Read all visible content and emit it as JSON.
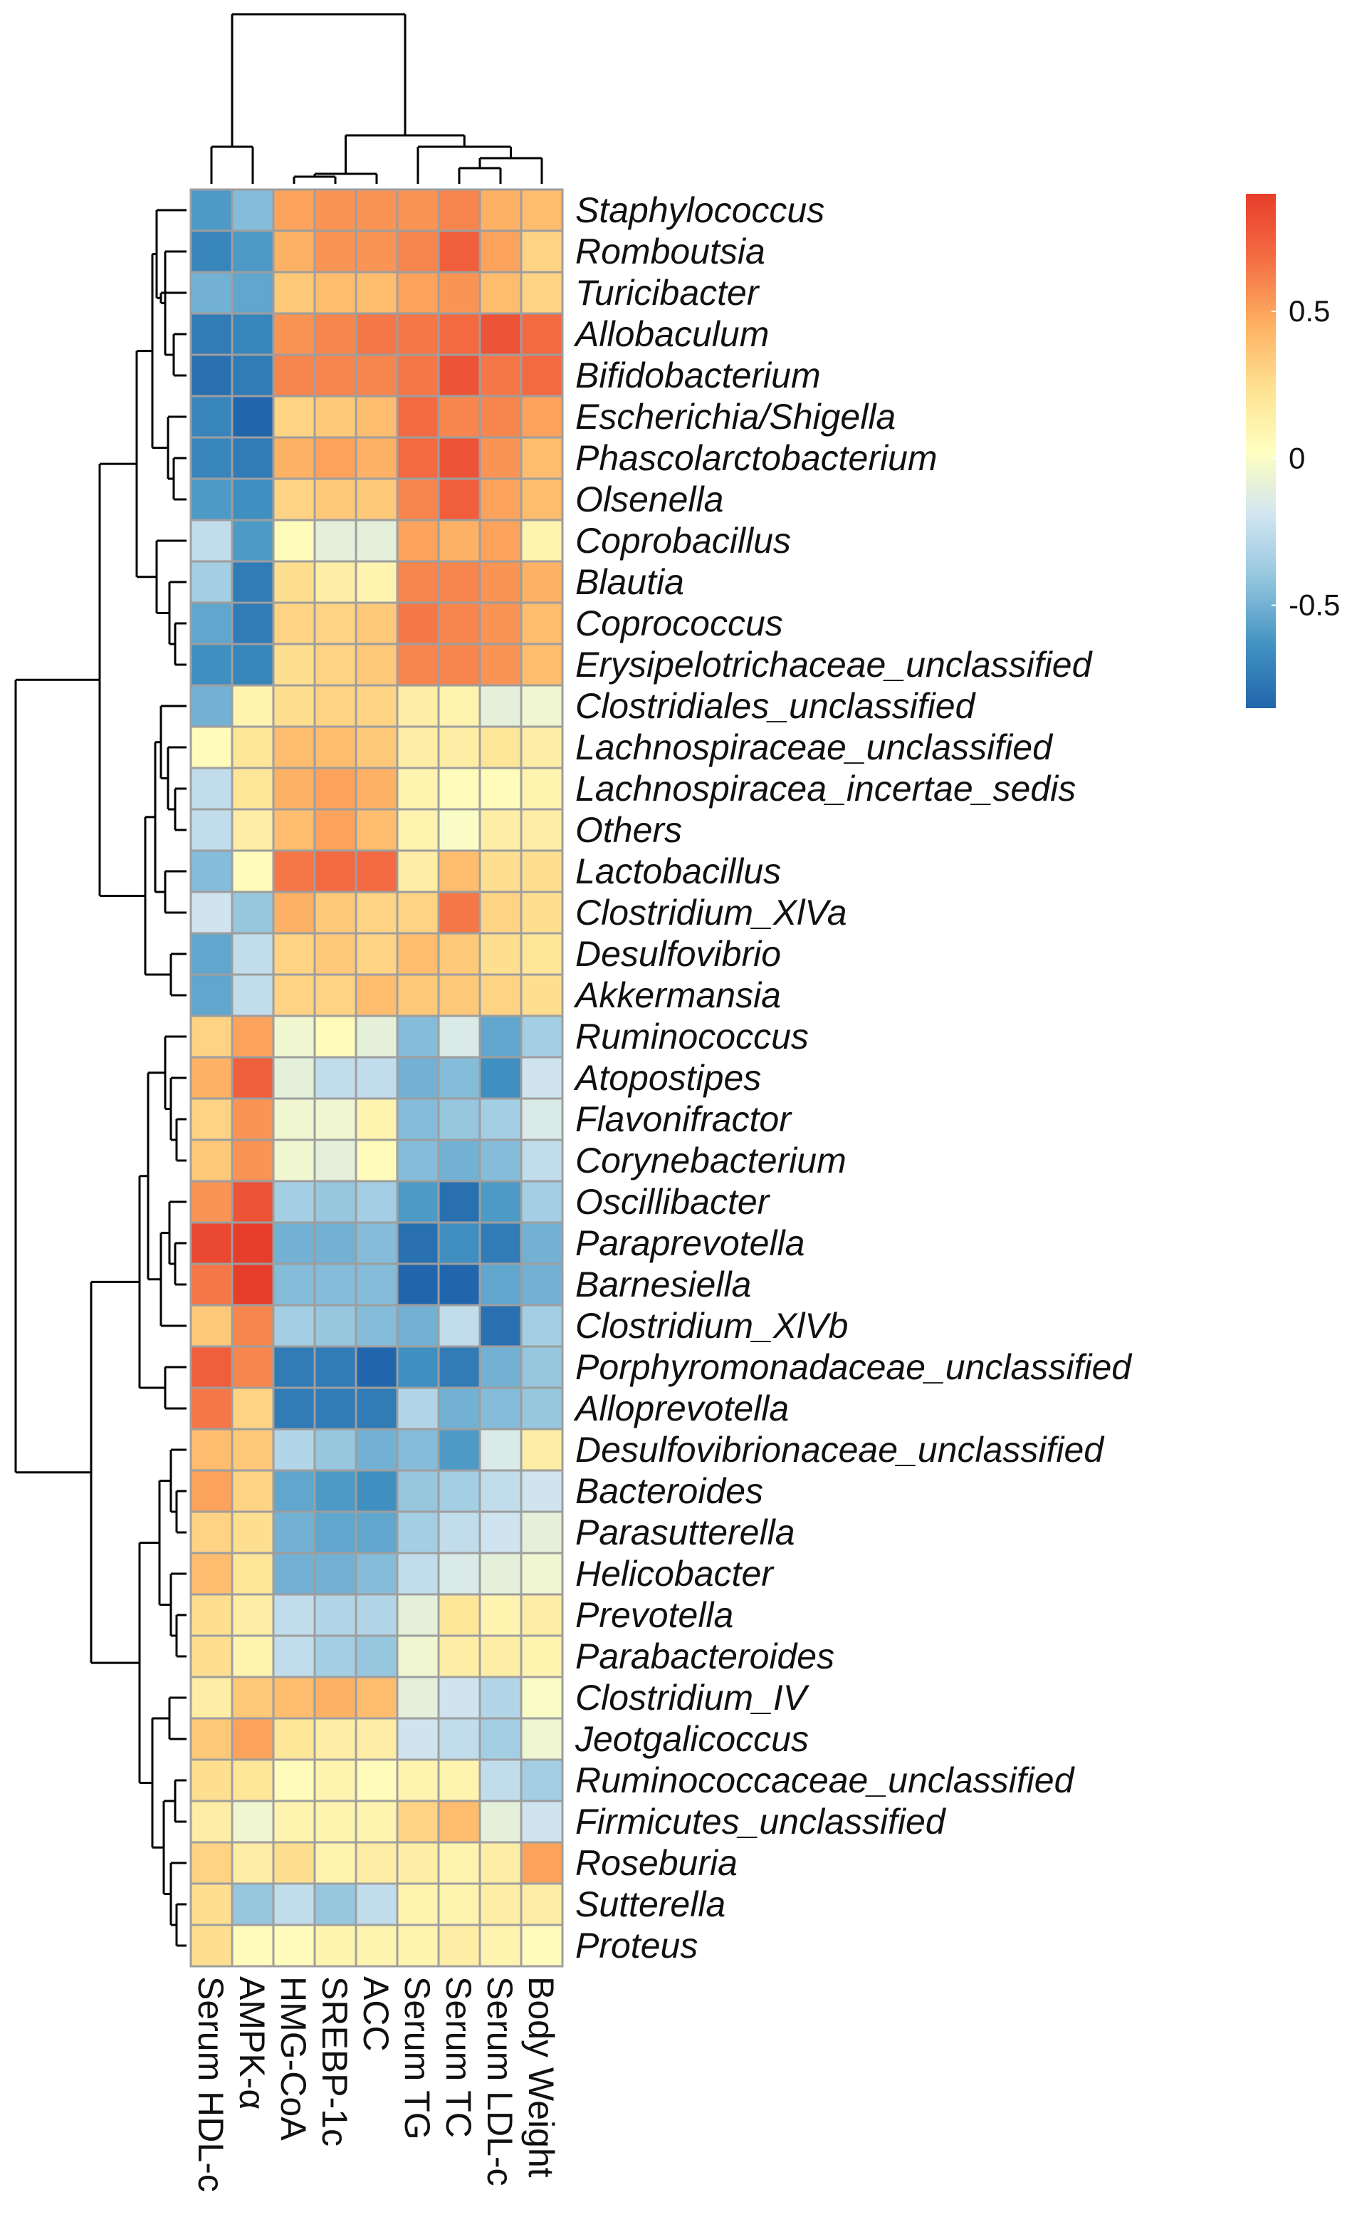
{
  "chart_data": {
    "type": "heatmap",
    "title": "",
    "xlabel": "",
    "ylabel": "",
    "columns": [
      "Serum HDL-c",
      "AMPK-α",
      "HMG-CoA",
      "SREBP-1c",
      "ACC",
      "Serum TG",
      "Serum TC",
      "Serum LDL-c",
      "Body Weight"
    ],
    "rows": [
      "Staphylococcus",
      "Romboutsia",
      "Turicibacter",
      "Allobaculum",
      "Bifidobacterium",
      "Escherichia/Shigella",
      "Phascolarctobacterium",
      "Olsenella",
      "Coprobacillus",
      "Blautia",
      "Coprococcus",
      "Erysipelotrichaceae_unclassified",
      "Clostridiales_unclassified",
      "Lachnospiraceae_unclassified",
      "Lachnospiracea_incertae_sedis",
      "Others",
      "Lactobacillus",
      "Clostridium_XlVa",
      "Desulfovibrio",
      "Akkermansia",
      "Ruminococcus",
      "Atopostipes",
      "Flavonifractor",
      "Corynebacterium",
      "Oscillibacter",
      "Paraprevotella",
      "Barnesiella",
      "Clostridium_XlVb",
      "Porphyromonadaceae_unclassified",
      "Alloprevotella",
      "Desulfovibrionaceae_unclassified",
      "Bacteroides",
      "Parasutterella",
      "Helicobacter",
      "Prevotella",
      "Parabacteroides",
      "Clostridium_IV",
      "Jeotgalicoccus",
      "Ruminococcaceae_unclassified",
      "Firmicutes_unclassified",
      "Roseburia",
      "Sutterella",
      "Proteus"
    ],
    "values": [
      [
        -0.6,
        -0.45,
        0.5,
        0.55,
        0.55,
        0.55,
        0.6,
        0.45,
        0.4
      ],
      [
        -0.7,
        -0.6,
        0.45,
        0.55,
        0.55,
        0.6,
        0.75,
        0.5,
        0.3
      ],
      [
        -0.5,
        -0.55,
        0.35,
        0.4,
        0.4,
        0.5,
        0.55,
        0.4,
        0.3
      ],
      [
        -0.75,
        -0.7,
        0.55,
        0.6,
        0.65,
        0.65,
        0.7,
        0.8,
        0.7
      ],
      [
        -0.8,
        -0.75,
        0.6,
        0.6,
        0.6,
        0.65,
        0.8,
        0.65,
        0.7
      ],
      [
        -0.7,
        -0.9,
        0.3,
        0.35,
        0.4,
        0.7,
        0.6,
        0.6,
        0.5
      ],
      [
        -0.7,
        -0.75,
        0.45,
        0.5,
        0.45,
        0.7,
        0.8,
        0.55,
        0.4
      ],
      [
        -0.6,
        -0.65,
        0.3,
        0.35,
        0.35,
        0.6,
        0.75,
        0.5,
        0.4
      ],
      [
        -0.25,
        -0.6,
        0.05,
        -0.1,
        -0.1,
        0.5,
        0.45,
        0.5,
        0.1
      ],
      [
        -0.35,
        -0.75,
        0.25,
        0.15,
        0.1,
        0.6,
        0.6,
        0.55,
        0.45
      ],
      [
        -0.55,
        -0.75,
        0.3,
        0.3,
        0.35,
        0.65,
        0.6,
        0.55,
        0.4
      ],
      [
        -0.65,
        -0.7,
        0.25,
        0.3,
        0.35,
        0.6,
        0.6,
        0.55,
        0.4
      ],
      [
        -0.5,
        0.1,
        0.25,
        0.3,
        0.3,
        0.15,
        0.1,
        -0.1,
        -0.05
      ],
      [
        0.05,
        0.2,
        0.4,
        0.4,
        0.35,
        0.15,
        0.15,
        0.2,
        0.15
      ],
      [
        -0.25,
        0.2,
        0.45,
        0.5,
        0.45,
        0.1,
        0.05,
        0.05,
        0.1
      ],
      [
        -0.25,
        0.15,
        0.4,
        0.5,
        0.4,
        0.1,
        0.0,
        0.15,
        0.15
      ],
      [
        -0.45,
        0.05,
        0.65,
        0.7,
        0.7,
        0.15,
        0.4,
        0.25,
        0.25
      ],
      [
        -0.2,
        -0.4,
        0.45,
        0.35,
        0.3,
        0.3,
        0.65,
        0.3,
        0.25
      ],
      [
        -0.55,
        -0.25,
        0.3,
        0.35,
        0.3,
        0.4,
        0.35,
        0.25,
        0.2
      ],
      [
        -0.55,
        -0.25,
        0.3,
        0.3,
        0.4,
        0.35,
        0.35,
        0.3,
        0.25
      ],
      [
        0.3,
        0.5,
        -0.05,
        0.05,
        -0.1,
        -0.45,
        -0.15,
        -0.55,
        -0.35
      ],
      [
        0.45,
        0.75,
        -0.1,
        -0.25,
        -0.25,
        -0.5,
        -0.45,
        -0.65,
        -0.2
      ],
      [
        0.3,
        0.55,
        -0.05,
        -0.05,
        0.1,
        -0.45,
        -0.4,
        -0.35,
        -0.15
      ],
      [
        0.35,
        0.55,
        -0.05,
        -0.1,
        0.05,
        -0.45,
        -0.5,
        -0.45,
        -0.25
      ],
      [
        0.55,
        0.8,
        -0.35,
        -0.4,
        -0.35,
        -0.6,
        -0.8,
        -0.6,
        -0.35
      ],
      [
        0.85,
        0.9,
        -0.5,
        -0.5,
        -0.45,
        -0.8,
        -0.65,
        -0.75,
        -0.5
      ],
      [
        0.65,
        0.9,
        -0.45,
        -0.45,
        -0.45,
        -0.9,
        -0.9,
        -0.55,
        -0.5
      ],
      [
        0.35,
        0.6,
        -0.35,
        -0.4,
        -0.45,
        -0.5,
        -0.25,
        -0.8,
        -0.35
      ],
      [
        0.75,
        0.6,
        -0.75,
        -0.75,
        -0.85,
        -0.65,
        -0.75,
        -0.5,
        -0.4
      ],
      [
        0.65,
        0.3,
        -0.75,
        -0.75,
        -0.75,
        -0.3,
        -0.5,
        -0.45,
        -0.4
      ],
      [
        0.4,
        0.35,
        -0.3,
        -0.4,
        -0.5,
        -0.45,
        -0.6,
        -0.15,
        0.15
      ],
      [
        0.5,
        0.3,
        -0.55,
        -0.6,
        -0.65,
        -0.4,
        -0.35,
        -0.25,
        -0.2
      ],
      [
        0.3,
        0.25,
        -0.5,
        -0.55,
        -0.55,
        -0.35,
        -0.25,
        -0.2,
        -0.1
      ],
      [
        0.4,
        0.2,
        -0.5,
        -0.5,
        -0.45,
        -0.25,
        -0.15,
        -0.1,
        -0.05
      ],
      [
        0.25,
        0.15,
        -0.25,
        -0.3,
        -0.3,
        -0.1,
        0.2,
        0.1,
        0.15
      ],
      [
        0.25,
        0.1,
        -0.25,
        -0.35,
        -0.4,
        -0.05,
        0.15,
        0.15,
        0.1
      ],
      [
        0.15,
        0.35,
        0.4,
        0.45,
        0.4,
        -0.1,
        -0.2,
        -0.3,
        0.0
      ],
      [
        0.35,
        0.5,
        0.2,
        0.15,
        0.15,
        -0.2,
        -0.25,
        -0.35,
        -0.05
      ],
      [
        0.25,
        0.2,
        0.05,
        0.1,
        0.05,
        0.1,
        0.1,
        -0.25,
        -0.35
      ],
      [
        0.15,
        -0.05,
        0.1,
        0.1,
        0.1,
        0.3,
        0.4,
        -0.1,
        -0.2
      ],
      [
        0.3,
        0.15,
        0.25,
        0.1,
        0.15,
        0.15,
        0.1,
        0.15,
        0.5
      ],
      [
        0.25,
        -0.4,
        -0.25,
        -0.4,
        -0.25,
        0.1,
        0.1,
        0.15,
        0.15
      ],
      [
        0.25,
        0.05,
        0.05,
        0.1,
        0.1,
        0.1,
        0.15,
        0.1,
        0.05
      ]
    ],
    "colorbar": {
      "ticks": [
        0.5,
        0,
        -0.5
      ],
      "tick_labels": [
        "0.5",
        "0",
        "-0.5"
      ],
      "range": [
        -0.85,
        0.9
      ],
      "colors": [
        "#2166ac",
        "#4393c3",
        "#92c5de",
        "#d1e5f0",
        "#ffffbf",
        "#fee090",
        "#fdae61",
        "#f46d43",
        "#e73d2b"
      ]
    }
  }
}
